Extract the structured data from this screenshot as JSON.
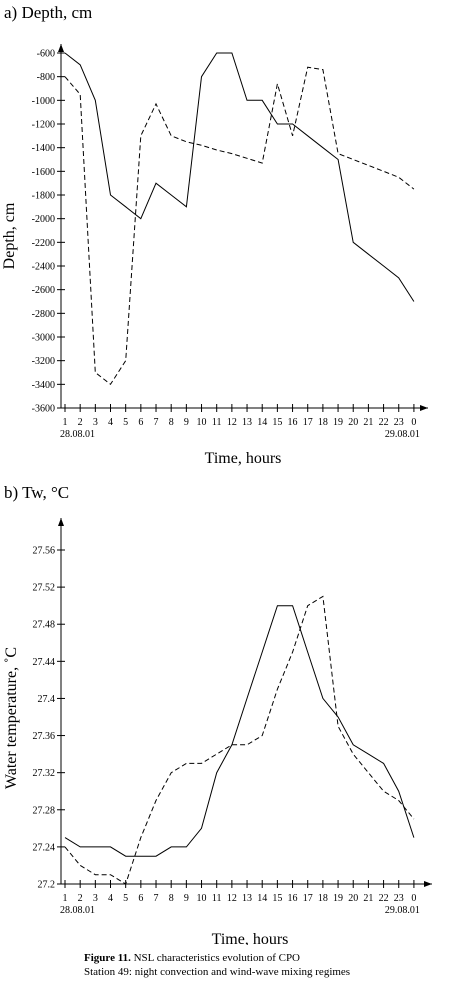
{
  "chart_data": [
    {
      "type": "line",
      "title": "a) Depth, cm",
      "ylabel": "Depth, cm",
      "xlabel": "Time, hours",
      "ylim": [
        -3600,
        -600
      ],
      "yticks": [
        -600,
        -800,
        -1000,
        -1200,
        -1400,
        -1600,
        -1800,
        -2000,
        -2200,
        -2400,
        -2600,
        -2800,
        -3000,
        -3200,
        -3400,
        -3600
      ],
      "xticks": [
        "1",
        "2",
        "3",
        "4",
        "5",
        "6",
        "7",
        "8",
        "9",
        "10",
        "11",
        "12",
        "13",
        "14",
        "15",
        "16",
        "17",
        "18",
        "19",
        "20",
        "21",
        "22",
        "23",
        "0"
      ],
      "date_start": "28.08.01",
      "date_end": "29.08.01",
      "series": [
        {
          "style": "solid",
          "x": [
            1,
            2,
            3,
            4,
            5,
            6,
            7,
            8,
            9,
            10,
            11,
            12,
            13,
            14,
            15,
            16,
            17,
            18,
            19,
            20,
            21,
            22,
            23,
            24
          ],
          "y": [
            -600,
            -700,
            -1000,
            -1800,
            -1900,
            -2000,
            -1700,
            -1800,
            -1900,
            -800,
            -600,
            -600,
            -1000,
            -1000,
            -1200,
            -1200,
            -1300,
            -1400,
            -1500,
            -2200,
            -2300,
            -2400,
            -2500,
            -2700
          ]
        },
        {
          "style": "dashed",
          "x": [
            1,
            2,
            3,
            4,
            5,
            6,
            7,
            8,
            9,
            10,
            11,
            12,
            13,
            14,
            15,
            16,
            17,
            18,
            19,
            20,
            21,
            22,
            23,
            24
          ],
          "y": [
            -800,
            -950,
            -3300,
            -3400,
            -3200,
            -1300,
            -1030,
            -1300,
            -1350,
            -1380,
            -1420,
            -1450,
            -1490,
            -1530,
            -860,
            -1300,
            -720,
            -740,
            -1450,
            -1500,
            -1550,
            -1600,
            -1650,
            -1750
          ]
        }
      ]
    },
    {
      "type": "line",
      "title": "b) Tw, °C",
      "ylabel": "Water temperature, ˚C",
      "xlabel": "Time, hours",
      "ylim": [
        27.2,
        27.56
      ],
      "yticks": [
        27.2,
        27.24,
        27.28,
        27.32,
        27.36,
        27.4,
        27.44,
        27.48,
        27.52,
        27.56
      ],
      "ytick_labels": [
        "27.2",
        "27.24",
        "27.28",
        "27.32",
        "27.36",
        "27.4",
        "27.44",
        "27.48",
        "27.52",
        "27.56"
      ],
      "xticks": [
        "1",
        "2",
        "3",
        "4",
        "5",
        "6",
        "7",
        "8",
        "9",
        "10",
        "11",
        "12",
        "13",
        "14",
        "15",
        "16",
        "17",
        "18",
        "19",
        "20",
        "21",
        "22",
        "23",
        "0"
      ],
      "date_start": "28.08.01",
      "date_end": "29.08.01",
      "series": [
        {
          "style": "solid",
          "x": [
            1,
            2,
            3,
            4,
            5,
            6,
            7,
            8,
            9,
            10,
            11,
            12,
            13,
            14,
            15,
            16,
            17,
            18,
            19,
            20,
            21,
            22,
            23,
            24
          ],
          "y": [
            27.25,
            27.24,
            27.24,
            27.24,
            27.23,
            27.23,
            27.23,
            27.24,
            27.24,
            27.26,
            27.32,
            27.35,
            27.4,
            27.45,
            27.5,
            27.5,
            27.45,
            27.4,
            27.38,
            27.35,
            27.34,
            27.33,
            27.3,
            27.25
          ]
        },
        {
          "style": "dashed",
          "x": [
            1,
            2,
            3,
            4,
            5,
            6,
            7,
            8,
            9,
            10,
            11,
            12,
            13,
            14,
            15,
            16,
            17,
            18,
            19,
            20,
            21,
            22,
            23,
            24
          ],
          "y": [
            27.24,
            27.22,
            27.21,
            27.21,
            27.2,
            27.25,
            27.29,
            27.32,
            27.33,
            27.33,
            27.34,
            27.35,
            27.35,
            27.36,
            27.41,
            27.45,
            27.5,
            27.51,
            27.37,
            27.34,
            27.32,
            27.3,
            27.29,
            27.27
          ]
        }
      ]
    }
  ],
  "caption": {
    "label": "Figure 11.",
    "text": " NSL characteristics evolution of CPO",
    "line2": "Station 49: night convection and wind-wave mixing regimes"
  }
}
